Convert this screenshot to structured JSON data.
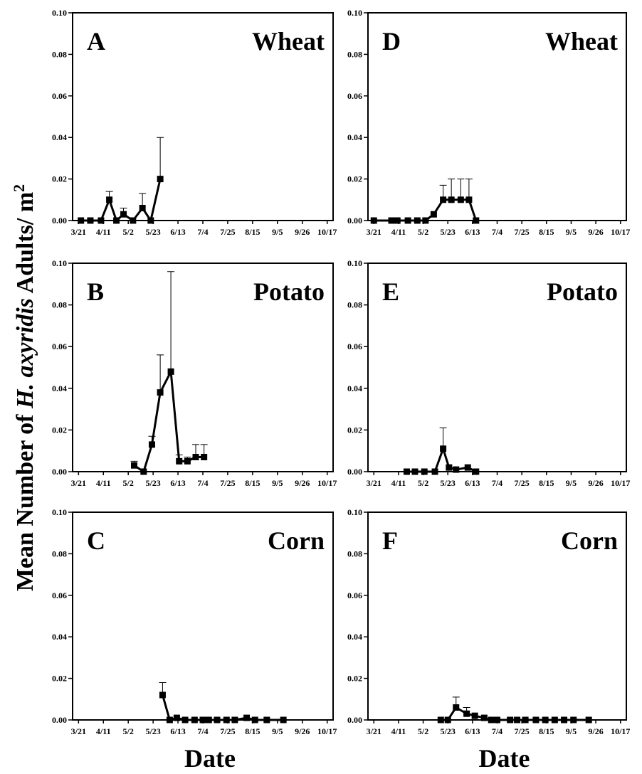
{
  "ylabel_parts": [
    "Mean Number of ",
    "H. axyridis",
    " Adults/ m",
    "2"
  ],
  "chart_data": [
    {
      "type": "line",
      "letter": "A",
      "title": "Wheat",
      "xlim": [
        75,
        295
      ],
      "ylim": [
        0,
        0.1
      ],
      "x": [
        82,
        90,
        99,
        106,
        112,
        118,
        126,
        134,
        141,
        149
      ],
      "values": [
        0,
        0,
        0,
        0.01,
        0,
        0.003,
        0,
        0.006,
        0,
        0.02
      ],
      "errors": [
        null,
        null,
        null,
        0.004,
        null,
        0.003,
        null,
        0.007,
        null,
        0.02
      ]
    },
    {
      "type": "line",
      "letter": "B",
      "title": "Potato",
      "xlim": [
        75,
        295
      ],
      "ylim": [
        0,
        0.1
      ],
      "x": [
        127,
        135,
        142,
        149,
        158,
        165,
        172,
        179,
        186
      ],
      "values": [
        0.003,
        0,
        0.013,
        0.038,
        0.048,
        0.005,
        0.005,
        0.007,
        0.007
      ],
      "errors": [
        0.002,
        null,
        0.004,
        0.018,
        0.048,
        0.003,
        0.002,
        0.006,
        0.006
      ]
    },
    {
      "type": "line",
      "letter": "C",
      "title": "Corn",
      "xlim": [
        75,
        295
      ],
      "ylim": [
        0,
        0.1
      ],
      "xlabel": "Date",
      "x": [
        151,
        157,
        163,
        170,
        178,
        185,
        190,
        197,
        205,
        212,
        222,
        229,
        239,
        253
      ],
      "values": [
        0.012,
        0,
        0.001,
        0,
        0,
        0,
        0,
        0,
        0,
        0,
        0.001,
        0,
        0,
        0
      ],
      "errors": [
        0.006,
        null,
        null,
        null,
        null,
        null,
        null,
        null,
        null,
        null,
        null,
        null,
        null,
        null
      ]
    },
    {
      "type": "line",
      "letter": "D",
      "title": "Wheat",
      "xlim": [
        75,
        295
      ],
      "ylim": [
        0,
        0.1
      ],
      "x": [
        80,
        95,
        100,
        109,
        117,
        124,
        131,
        139,
        146,
        154,
        161,
        167
      ],
      "values": [
        0,
        0,
        0,
        0,
        0,
        0,
        0.003,
        0.01,
        0.01,
        0.01,
        0.01,
        0
      ],
      "errors": [
        null,
        null,
        null,
        null,
        null,
        null,
        null,
        0.007,
        0.01,
        0.01,
        0.01,
        null
      ]
    },
    {
      "type": "line",
      "letter": "E",
      "title": "Potato",
      "xlim": [
        75,
        295
      ],
      "ylim": [
        0,
        0.1
      ],
      "x": [
        108,
        115,
        123,
        132,
        139,
        144,
        150,
        160,
        167
      ],
      "values": [
        0,
        0,
        0,
        0,
        0.011,
        0.002,
        0.001,
        0.002,
        0
      ],
      "errors": [
        null,
        null,
        null,
        null,
        0.01,
        null,
        null,
        null,
        null
      ]
    },
    {
      "type": "line",
      "letter": "F",
      "title": "Corn",
      "xlim": [
        75,
        295
      ],
      "ylim": [
        0,
        0.1
      ],
      "xlabel": "Date",
      "x": [
        137,
        143,
        150,
        159,
        166,
        174,
        180,
        185,
        196,
        202,
        209,
        218,
        226,
        234,
        242,
        250,
        263
      ],
      "values": [
        0,
        0,
        0.006,
        0.003,
        0.002,
        0.001,
        0,
        0,
        0,
        0,
        0,
        0,
        0,
        0,
        0,
        0,
        0
      ],
      "errors": [
        null,
        null,
        0.005,
        0.003,
        null,
        null,
        null,
        null,
        null,
        null,
        null,
        null,
        null,
        null,
        null,
        null,
        null
      ]
    }
  ],
  "xticks": [
    {
      "value": 80,
      "label": "3/21"
    },
    {
      "value": 101,
      "label": "4/11"
    },
    {
      "value": 122,
      "label": "5/2"
    },
    {
      "value": 143,
      "label": "5/23"
    },
    {
      "value": 164,
      "label": "6/13"
    },
    {
      "value": 185,
      "label": "7/4"
    },
    {
      "value": 206,
      "label": "7/25"
    },
    {
      "value": 227,
      "label": "8/15"
    },
    {
      "value": 248,
      "label": "9/5"
    },
    {
      "value": 269,
      "label": "9/26"
    },
    {
      "value": 290,
      "label": "10/17"
    }
  ],
  "yticks": [
    {
      "value": 0,
      "label": "0.00"
    },
    {
      "value": 0.02,
      "label": "0.02"
    },
    {
      "value": 0.04,
      "label": "0.04"
    },
    {
      "value": 0.06,
      "label": "0.06"
    },
    {
      "value": 0.08,
      "label": "0.08"
    },
    {
      "value": 0.1,
      "label": "0.10"
    }
  ]
}
